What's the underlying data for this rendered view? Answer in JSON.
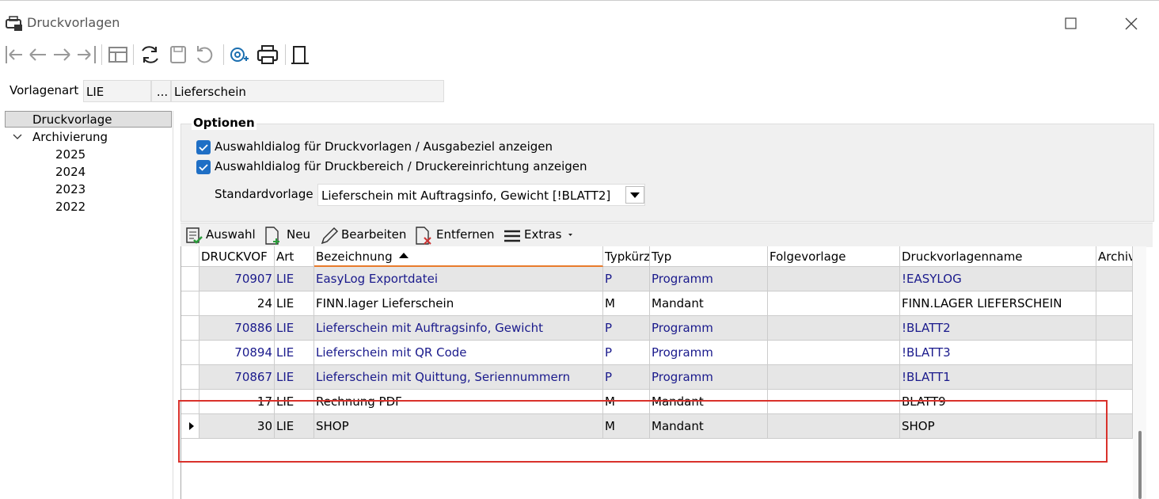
{
  "window": {
    "title": "Druckvorlagen"
  },
  "header": {
    "label": "Vorlagenart",
    "code": "LIE",
    "button": "...",
    "description": "Lieferschein"
  },
  "tree": {
    "items": [
      "Druckvorlage",
      "Archivierung",
      "2025",
      "2024",
      "2023",
      "2022"
    ]
  },
  "options": {
    "title": "Optionen",
    "checkboxes": [
      "Auswahldialog für Druckvorlagen / Ausgabeziel anzeigen",
      "Auswahldialog für Druckbereich / Druckereinrichtung anzeigen"
    ],
    "standard_label": "Standardvorlage",
    "standard_value": "Lieferschein mit Auftragsinfo, Gewicht [!BLATT2]"
  },
  "grid_toolbar": [
    "Auswahl",
    "Neu",
    "Bearbeiten",
    "Entfernen",
    "Extras"
  ],
  "table": {
    "columns": [
      "DRUCKVOF",
      "Art",
      "Bezeichnung",
      "Typkürz",
      "Typ",
      "Folgevorlage",
      "Druckvorlagenname",
      "Archiv"
    ],
    "rows": [
      {
        "nr": 70907,
        "art": "LIE",
        "bezeichnung": "EasyLog Exportdatei",
        "kuerzel": "P",
        "typ": "Programm",
        "name": "!EASYLOG"
      },
      {
        "nr": 24,
        "art": "LIE",
        "bezeichnung": "FINN.lager Lieferschein",
        "kuerzel": "M",
        "typ": "Mandant",
        "name": "FINN.LAGER LIEFERSCHEIN"
      },
      {
        "nr": 70886,
        "art": "LIE",
        "bezeichnung": "Lieferschein mit Auftragsinfo, Gewicht",
        "kuerzel": "P",
        "typ": "Programm",
        "name": "!BLATT2"
      },
      {
        "nr": 70894,
        "art": "LIE",
        "bezeichnung": "Lieferschein mit QR Code",
        "kuerzel": "P",
        "typ": "Programm",
        "name": "!BLATT3"
      },
      {
        "nr": 70867,
        "art": "LIE",
        "bezeichnung": "Lieferschein mit Quittung, Seriennummern",
        "kuerzel": "P",
        "typ": "Programm",
        "name": "!BLATT1"
      },
      {
        "nr": 17,
        "art": "LIE",
        "bezeichnung": "Rechnung PDF",
        "kuerzel": "M",
        "typ": "Mandant",
        "name": "BLATT9"
      },
      {
        "nr": 30,
        "art": "LIE",
        "bezeichnung": "SHOP",
        "kuerzel": "M",
        "typ": "Mandant",
        "name": "SHOP"
      }
    ]
  }
}
